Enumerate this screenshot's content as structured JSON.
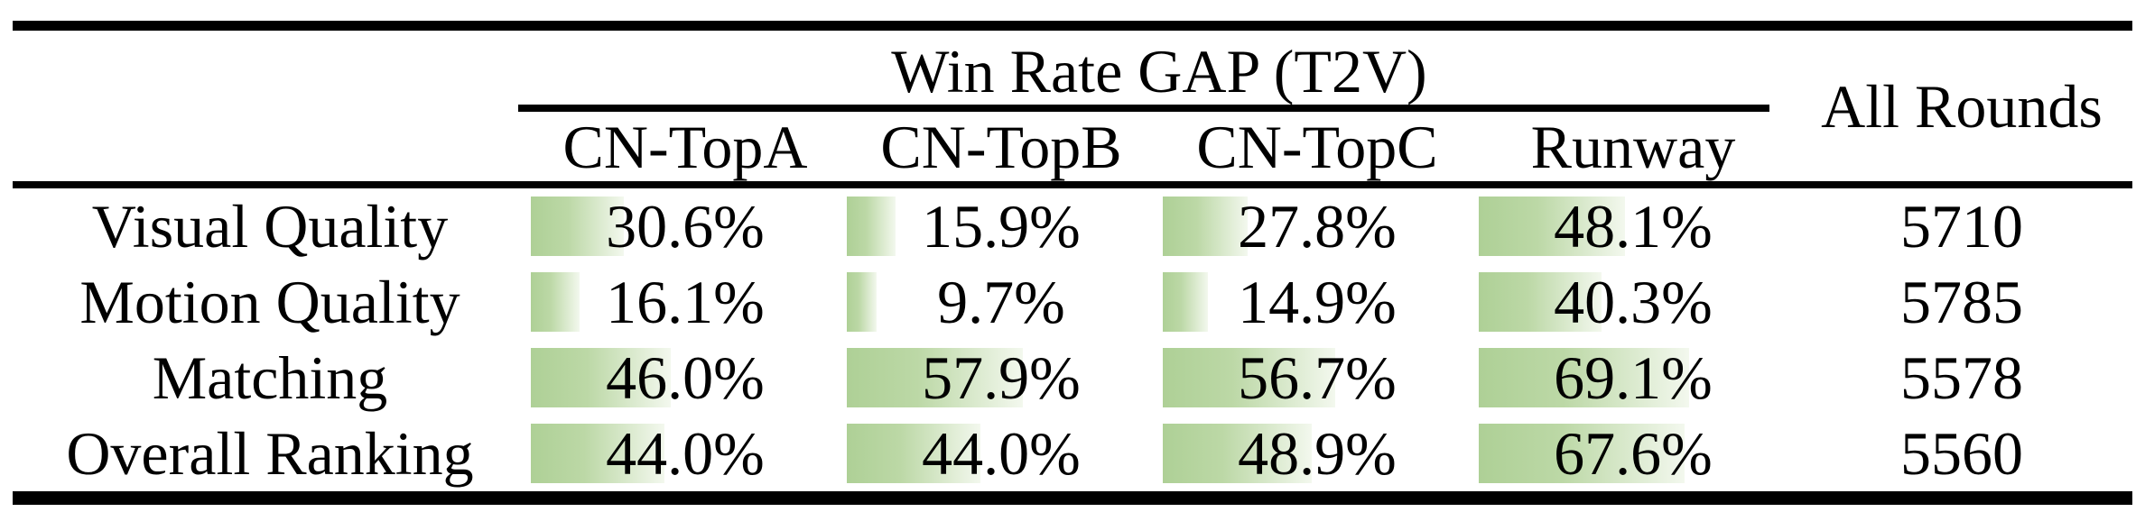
{
  "figure": {
    "group_header": "Win Rate GAP (T2V)",
    "all_rounds_header": "All Rounds",
    "columns": [
      "CN-TopA",
      "CN-TopB",
      "CN-TopC",
      "Runway"
    ],
    "rows": [
      {
        "label": "Visual Quality",
        "cells": [
          {
            "text": "30.6%",
            "pct": 30.6
          },
          {
            "text": "15.9%",
            "pct": 15.9
          },
          {
            "text": "27.8%",
            "pct": 27.8
          },
          {
            "text": "48.1%",
            "pct": 48.1
          }
        ],
        "all_rounds": "5710"
      },
      {
        "label": "Motion Quality",
        "cells": [
          {
            "text": "16.1%",
            "pct": 16.1
          },
          {
            "text": "9.7%",
            "pct": 9.7
          },
          {
            "text": "14.9%",
            "pct": 14.9
          },
          {
            "text": "40.3%",
            "pct": 40.3
          }
        ],
        "all_rounds": "5785"
      },
      {
        "label": "Matching",
        "cells": [
          {
            "text": "46.0%",
            "pct": 46.0
          },
          {
            "text": "57.9%",
            "pct": 57.9
          },
          {
            "text": "56.7%",
            "pct": 56.7
          },
          {
            "text": "69.1%",
            "pct": 69.1
          }
        ],
        "all_rounds": "5578"
      },
      {
        "label": "Overall Ranking",
        "cells": [
          {
            "text": "44.0%",
            "pct": 44.0
          },
          {
            "text": "44.0%",
            "pct": 44.0
          },
          {
            "text": "48.9%",
            "pct": 48.9
          },
          {
            "text": "67.6%",
            "pct": 67.6
          }
        ],
        "all_rounds": "5560"
      }
    ],
    "colors": {
      "bar_green": "#aed096",
      "bar_fade": "#f3f8ee",
      "rule_black": "#000000",
      "text_black": "#000000",
      "background": "#ffffff"
    }
  },
  "chart_data": {
    "type": "table",
    "title": "Win Rate GAP (T2V)",
    "categories": [
      "Visual Quality",
      "Motion Quality",
      "Matching",
      "Overall Ranking"
    ],
    "series": [
      {
        "name": "CN-TopA",
        "values": [
          30.6,
          16.1,
          46.0,
          44.0
        ]
      },
      {
        "name": "CN-TopB",
        "values": [
          15.9,
          9.7,
          57.9,
          44.0
        ]
      },
      {
        "name": "CN-TopC",
        "values": [
          27.8,
          14.9,
          56.7,
          48.9
        ]
      },
      {
        "name": "Runway",
        "values": [
          48.1,
          40.3,
          69.1,
          67.6
        ]
      }
    ],
    "all_rounds": [
      5710,
      5785,
      5578,
      5560
    ],
    "unit": "%",
    "bar_range": [
      0,
      100
    ],
    "notes": "In-cell horizontal data bars, green fading to white, width proportional to percentage"
  }
}
